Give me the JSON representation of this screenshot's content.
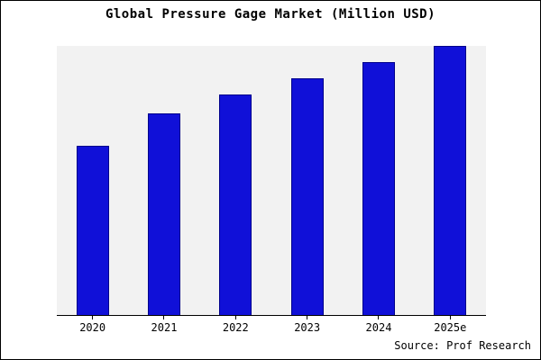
{
  "chart_data": {
    "type": "bar",
    "title": "Global Pressure Gage Market (Million USD)",
    "categories": [
      "2020",
      "2021",
      "2022",
      "2023",
      "2024",
      "2025e"
    ],
    "values": [
      63,
      75,
      82,
      88,
      94,
      100
    ],
    "xlabel": "",
    "ylabel": "",
    "ylim": [
      0,
      100
    ],
    "grid": false,
    "legend": false
  },
  "source_label": "Source: Prof Research",
  "colors": {
    "bar_fill": "#1010d8",
    "bar_edge": "#00008b",
    "plot_background": "#f2f2f2",
    "frame_border": "#000000"
  }
}
